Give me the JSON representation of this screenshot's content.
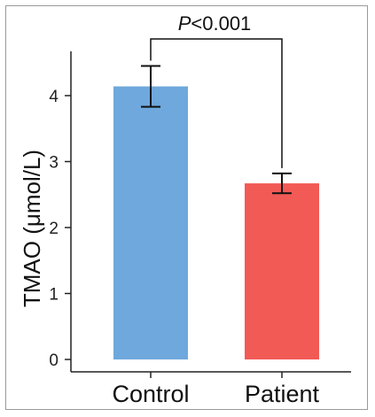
{
  "chart_data": {
    "type": "bar",
    "categories": [
      "Control",
      "Patient"
    ],
    "values": [
      4.14,
      2.67
    ],
    "error": [
      0.31,
      0.15
    ],
    "colors": [
      "#6fa8dc",
      "#f25a55"
    ],
    "ylabel": "TMAO (μmol/L)",
    "xlabel": "",
    "ylim": [
      0,
      4.5
    ],
    "yticks": [
      0,
      1,
      2,
      3,
      4
    ],
    "grid": false,
    "annotation": {
      "p_letter": "P",
      "p_rest": "<0.001"
    }
  }
}
